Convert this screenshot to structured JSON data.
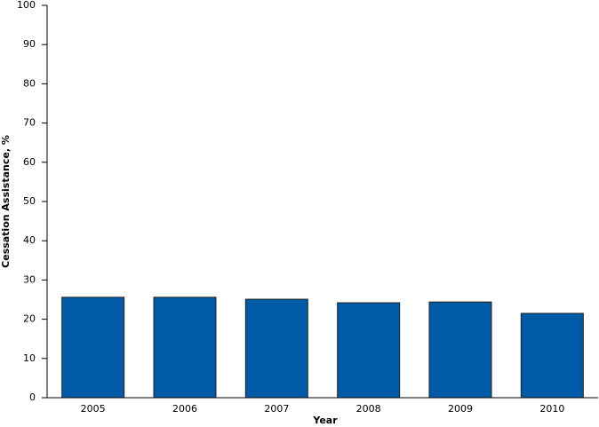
{
  "chart_data": {
    "type": "bar",
    "x_label": "Year",
    "y_label": "Cessation Assistance, %",
    "categories": [
      "2005",
      "2006",
      "2007",
      "2008",
      "2009",
      "2010"
    ],
    "values": [
      25.6,
      25.6,
      25.1,
      24.2,
      24.4,
      21.5
    ],
    "color": "#005ba6",
    "ylim": [
      0,
      100
    ],
    "yticks": [
      0,
      10,
      20,
      30,
      40,
      50,
      60,
      70,
      80,
      90,
      100
    ],
    "grid": false
  }
}
